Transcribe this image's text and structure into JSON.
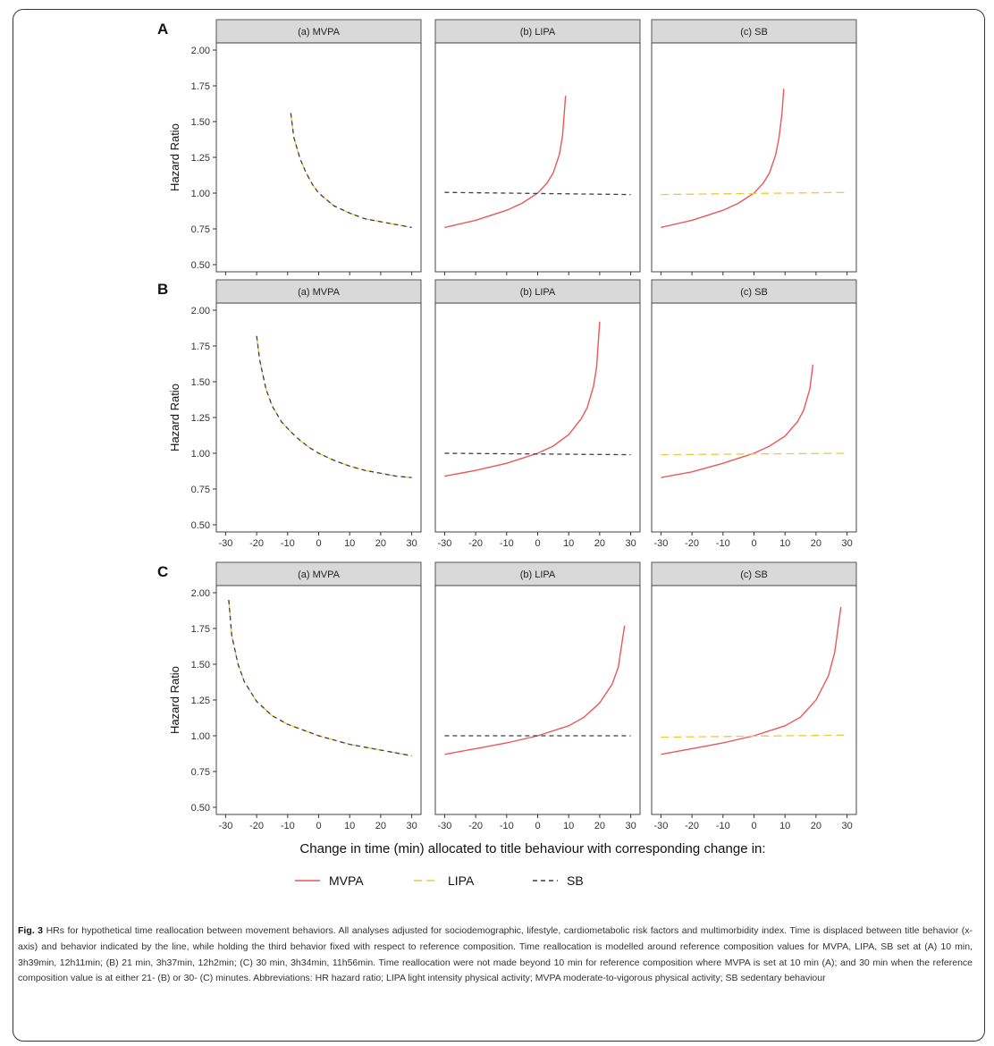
{
  "caption": {
    "label": "Fig. 3",
    "text": "HRs for hypothetical time reallocation between movement behaviors. All analyses adjusted for sociodemographic, lifestyle, cardiometabolic risk factors and multimorbidity index. Time is displaced between title behavior (x-axis) and behavior indicated by the line, while holding the third behavior fixed with respect to reference composition. Time reallocation is modelled around reference composition values for MVPA, LIPA, SB set at (A) 10 min, 3h39min, 12h11min; (B) 21 min, 3h37min, 12h2min; (C) 30 min, 3h34min, 11h56min. Time reallocation were not made beyond 10 min for reference composition where MVPA is set at 10 min (A); and 30 min when the reference composition value is at either 21- (B) or 30- (C) minutes. Abbreviations: HR hazard ratio; LIPA light intensity physical activity; MVPA moderate-to-vigorous physical activity; SB sedentary behaviour"
  },
  "colors": {
    "MVPA": "#e8585a",
    "LIPA": "#f2c83a",
    "SB": "#3a3f4e",
    "strip": "#d9d9d9"
  },
  "chart_data": {
    "type": "line",
    "ylabel": "Hazard Ratio",
    "xlabel": "Change in time (min) allocated to title behaviour with corresponding change in:",
    "xlim": [
      -33,
      33
    ],
    "ylim": [
      0.45,
      2.05
    ],
    "x_ticks": [
      -30,
      -20,
      -10,
      0,
      10,
      20,
      30
    ],
    "y_ticks": [
      "0.50",
      "0.75",
      "1.00",
      "1.25",
      "1.50",
      "1.75",
      "2.00"
    ],
    "facets": [
      "(a) MVPA",
      "(b) LIPA",
      "(c) SB"
    ],
    "legend": {
      "position": "bottom",
      "entries": [
        "MVPA",
        "LIPA",
        "SB"
      ]
    },
    "rows": [
      {
        "label": "A",
        "panels": [
          {
            "facet": "(a) MVPA",
            "series": [
              {
                "name": "LIPA",
                "x": [
                  -9,
                  -8,
                  -6,
                  -4,
                  -2,
                  0,
                  5,
                  10,
                  15,
                  20,
                  25,
                  30
                ],
                "y": [
                  1.56,
                  1.39,
                  1.24,
                  1.14,
                  1.06,
                  1.0,
                  0.91,
                  0.86,
                  0.82,
                  0.8,
                  0.78,
                  0.76
                ]
              },
              {
                "name": "SB",
                "x": [
                  -9,
                  -8,
                  -6,
                  -4,
                  -2,
                  0,
                  5,
                  10,
                  15,
                  20,
                  25,
                  30
                ],
                "y": [
                  1.56,
                  1.39,
                  1.24,
                  1.14,
                  1.06,
                  1.0,
                  0.91,
                  0.86,
                  0.82,
                  0.8,
                  0.78,
                  0.76
                ]
              }
            ]
          },
          {
            "facet": "(b) LIPA",
            "series": [
              {
                "name": "MVPA",
                "x": [
                  -30,
                  -20,
                  -10,
                  -5,
                  0,
                  3,
                  5,
                  7,
                  8,
                  9
                ],
                "y": [
                  0.76,
                  0.81,
                  0.88,
                  0.93,
                  1.0,
                  1.07,
                  1.14,
                  1.27,
                  1.4,
                  1.68
                ]
              },
              {
                "name": "SB",
                "x": [
                  -30,
                  30
                ],
                "y": [
                  1.005,
                  0.99
                ]
              }
            ]
          },
          {
            "facet": "(c) SB",
            "series": [
              {
                "name": "MVPA",
                "x": [
                  -30,
                  -20,
                  -10,
                  -5,
                  0,
                  3,
                  5,
                  7,
                  8,
                  9,
                  9.6
                ],
                "y": [
                  0.76,
                  0.81,
                  0.88,
                  0.93,
                  1.0,
                  1.07,
                  1.14,
                  1.27,
                  1.38,
                  1.55,
                  1.73
                ]
              },
              {
                "name": "LIPA",
                "x": [
                  -30,
                  30
                ],
                "y": [
                  0.99,
                  1.005
                ]
              }
            ]
          }
        ]
      },
      {
        "label": "B",
        "panels": [
          {
            "facet": "(a) MVPA",
            "series": [
              {
                "name": "LIPA",
                "x": [
                  -20,
                  -19,
                  -17,
                  -15,
                  -12,
                  -9,
                  -6,
                  -3,
                  0,
                  5,
                  10,
                  15,
                  20,
                  25,
                  30
                ],
                "y": [
                  1.82,
                  1.65,
                  1.45,
                  1.33,
                  1.22,
                  1.15,
                  1.09,
                  1.04,
                  1.0,
                  0.95,
                  0.91,
                  0.88,
                  0.86,
                  0.84,
                  0.83
                ]
              },
              {
                "name": "SB",
                "x": [
                  -20,
                  -19,
                  -17,
                  -15,
                  -12,
                  -9,
                  -6,
                  -3,
                  0,
                  5,
                  10,
                  15,
                  20,
                  25,
                  30
                ],
                "y": [
                  1.82,
                  1.65,
                  1.45,
                  1.33,
                  1.22,
                  1.15,
                  1.09,
                  1.04,
                  1.0,
                  0.95,
                  0.91,
                  0.88,
                  0.86,
                  0.84,
                  0.83
                ]
              }
            ]
          },
          {
            "facet": "(b) LIPA",
            "series": [
              {
                "name": "MVPA",
                "x": [
                  -30,
                  -20,
                  -10,
                  0,
                  5,
                  10,
                  14,
                  16,
                  18,
                  19,
                  20
                ],
                "y": [
                  0.84,
                  0.88,
                  0.93,
                  1.0,
                  1.05,
                  1.13,
                  1.24,
                  1.32,
                  1.47,
                  1.6,
                  1.92
                ]
              },
              {
                "name": "SB",
                "x": [
                  -30,
                  30
                ],
                "y": [
                  1.0,
                  0.99
                ]
              }
            ]
          },
          {
            "facet": "(c) SB",
            "series": [
              {
                "name": "MVPA",
                "x": [
                  -30,
                  -20,
                  -10,
                  0,
                  5,
                  10,
                  14,
                  16,
                  18,
                  19
                ],
                "y": [
                  0.83,
                  0.87,
                  0.93,
                  1.0,
                  1.05,
                  1.12,
                  1.22,
                  1.3,
                  1.45,
                  1.62
                ]
              },
              {
                "name": "LIPA",
                "x": [
                  -30,
                  30
                ],
                "y": [
                  0.99,
                  1.0
                ]
              }
            ]
          }
        ]
      },
      {
        "label": "C",
        "panels": [
          {
            "facet": "(a) MVPA",
            "series": [
              {
                "name": "LIPA",
                "x": [
                  -29,
                  -28,
                  -26,
                  -24,
                  -20,
                  -15,
                  -10,
                  -5,
                  0,
                  5,
                  10,
                  15,
                  20,
                  25,
                  30
                ],
                "y": [
                  1.95,
                  1.7,
                  1.5,
                  1.38,
                  1.24,
                  1.14,
                  1.08,
                  1.04,
                  1.0,
                  0.97,
                  0.94,
                  0.92,
                  0.9,
                  0.88,
                  0.86
                ]
              },
              {
                "name": "SB",
                "x": [
                  -29,
                  -28,
                  -26,
                  -24,
                  -20,
                  -15,
                  -10,
                  -5,
                  0,
                  5,
                  10,
                  15,
                  20,
                  25,
                  30
                ],
                "y": [
                  1.95,
                  1.7,
                  1.5,
                  1.38,
                  1.24,
                  1.14,
                  1.08,
                  1.04,
                  1.0,
                  0.97,
                  0.94,
                  0.92,
                  0.9,
                  0.88,
                  0.86
                ]
              }
            ]
          },
          {
            "facet": "(b) LIPA",
            "series": [
              {
                "name": "MVPA",
                "x": [
                  -30,
                  -20,
                  -10,
                  0,
                  10,
                  15,
                  20,
                  24,
                  26,
                  28
                ],
                "y": [
                  0.87,
                  0.91,
                  0.95,
                  1.0,
                  1.07,
                  1.13,
                  1.23,
                  1.36,
                  1.48,
                  1.77
                ]
              },
              {
                "name": "SB",
                "x": [
                  -30,
                  30
                ],
                "y": [
                  1.0,
                  1.0
                ]
              }
            ]
          },
          {
            "facet": "(c) SB",
            "series": [
              {
                "name": "MVPA",
                "x": [
                  -30,
                  -20,
                  -10,
                  0,
                  10,
                  15,
                  20,
                  24,
                  26,
                  28
                ],
                "y": [
                  0.87,
                  0.91,
                  0.95,
                  1.0,
                  1.07,
                  1.13,
                  1.25,
                  1.42,
                  1.58,
                  1.9
                ]
              },
              {
                "name": "LIPA",
                "x": [
                  -30,
                  30
                ],
                "y": [
                  0.99,
                  1.005
                ]
              }
            ]
          }
        ]
      }
    ]
  }
}
